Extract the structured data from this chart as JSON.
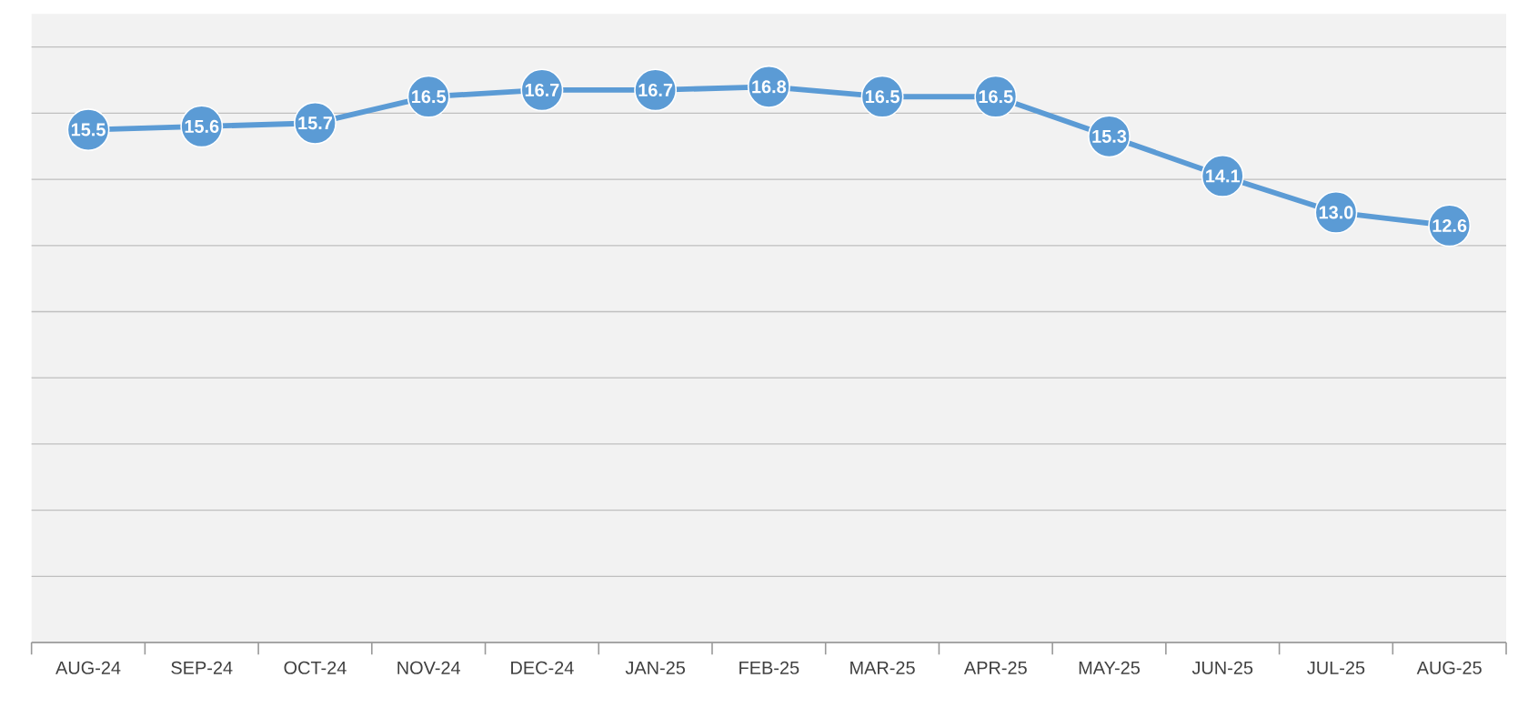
{
  "chart_data": {
    "type": "line",
    "categories": [
      "AUG-24",
      "SEP-24",
      "OCT-24",
      "NOV-24",
      "DEC-24",
      "JAN-25",
      "FEB-25",
      "MAR-25",
      "APR-25",
      "MAY-25",
      "JUN-25",
      "JUL-25",
      "AUG-25"
    ],
    "series": [
      {
        "color": "#5b9bd5",
        "values": [
          15.5,
          15.6,
          15.7,
          16.5,
          16.7,
          16.7,
          16.8,
          16.5,
          16.5,
          15.3,
          14.1,
          13.0,
          12.6
        ],
        "value_labels": [
          "15.5",
          "15.6",
          "15.7",
          "16.5",
          "16.7",
          "16.7",
          "16.8",
          "16.5",
          "16.5",
          "15.3",
          "14.1",
          "13.0",
          "12.6"
        ]
      }
    ],
    "ylim": [
      0,
      19
    ],
    "grid": "y",
    "marker": "circle",
    "line_style": "solid"
  }
}
